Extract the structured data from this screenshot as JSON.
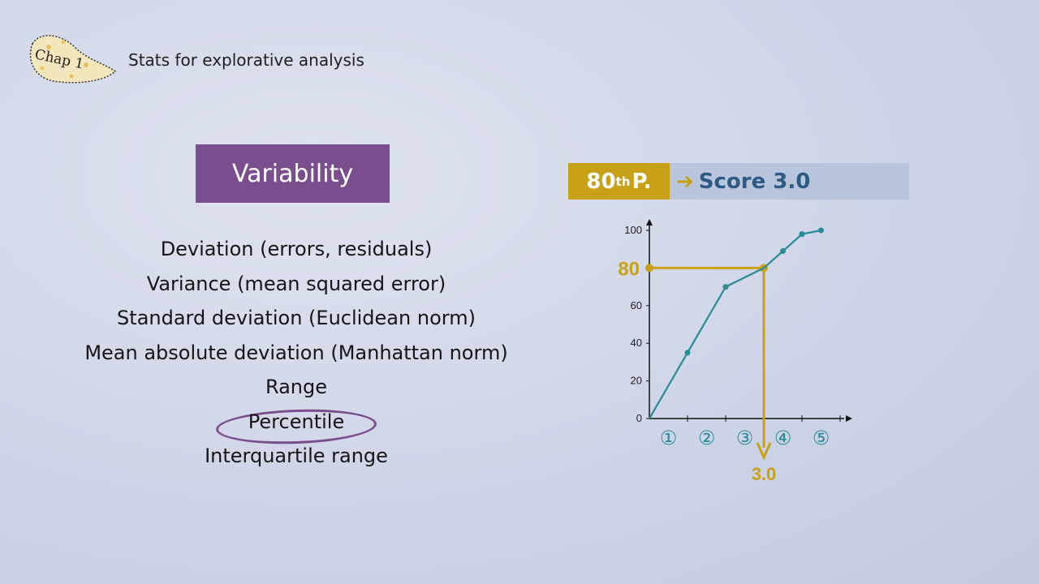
{
  "header": {
    "badge_text": "Chap 1",
    "title": "Stats for explorative analysis"
  },
  "section": {
    "title": "Variability"
  },
  "topics": [
    "Deviation (errors, residuals)",
    "Variance (mean squared error)",
    "Standard deviation (Euclidean norm)",
    "Mean absolute deviation (Manhattan norm)",
    "Range",
    "Percentile",
    "Interquartile range"
  ],
  "highlighted_topic": "Percentile",
  "banner": {
    "percentile_num": "80",
    "percentile_sup": "th",
    "percentile_suffix": "P.",
    "arrow": "➔",
    "score_text": "Score 3.0"
  },
  "colors": {
    "accent": "#c7a118",
    "series": "#2a8a96",
    "section": "#7a4d8e",
    "score_text": "#2c5a83"
  },
  "chart_data": {
    "type": "line",
    "x": [
      0,
      1,
      2,
      3,
      3.5,
      4,
      4.5
    ],
    "y": [
      0,
      35,
      70,
      80,
      89,
      98,
      100
    ],
    "x_tick_labels": [
      "①",
      "②",
      "③",
      "④",
      "⑤"
    ],
    "x_tick_values": [
      0.5,
      1.5,
      2.5,
      3.5,
      4.5
    ],
    "y_ticks": [
      0,
      20,
      40,
      60,
      80,
      100
    ],
    "ylim": [
      0,
      100
    ],
    "annotation": {
      "percentile": 80,
      "percentile_label": "80",
      "result": 3.0,
      "result_label": "3.0"
    }
  }
}
